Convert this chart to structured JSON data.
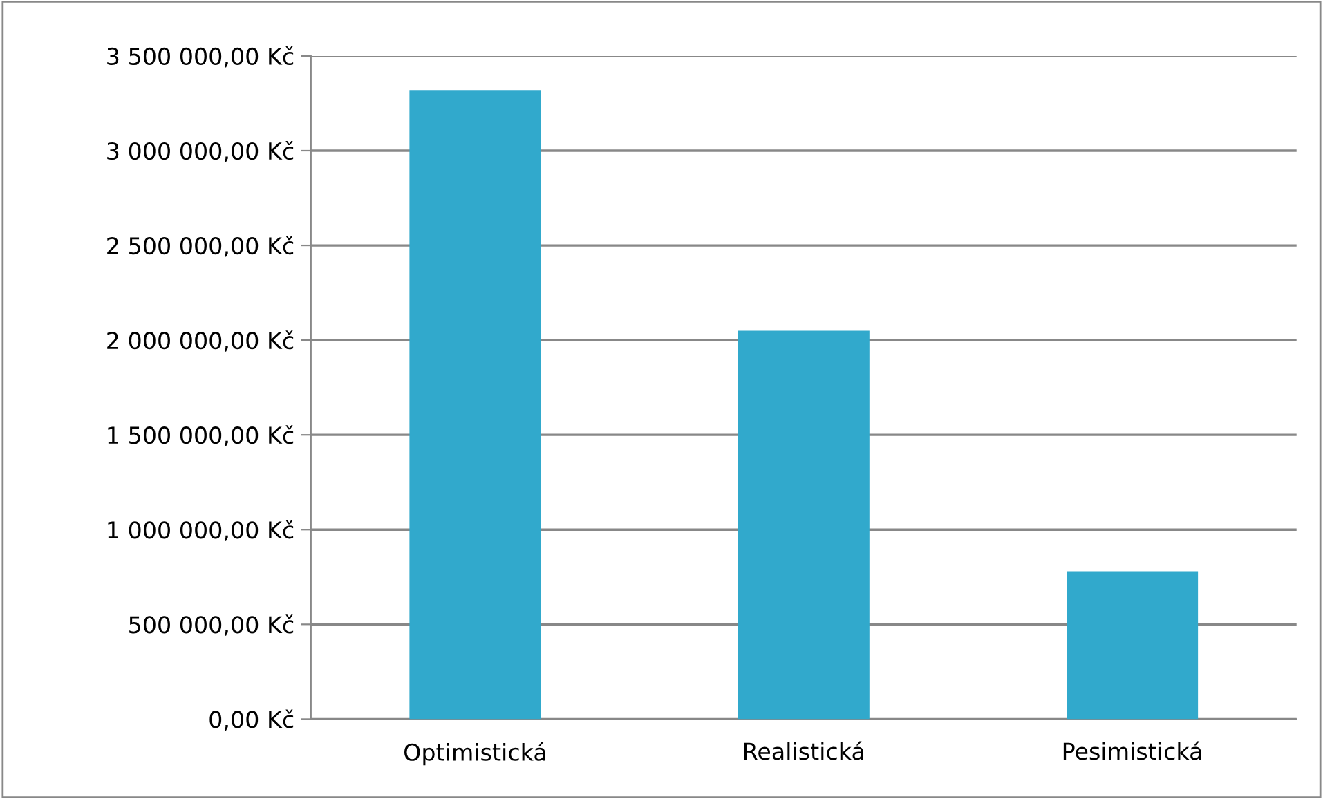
{
  "chart_data": {
    "type": "bar",
    "categories": [
      "Optimistická",
      "Realistická",
      "Pesimistická"
    ],
    "values": [
      3320000,
      2050000,
      780000
    ],
    "color": "#31a9cc",
    "ylim": [
      0,
      3500000
    ],
    "yticks": [
      {
        "value": 0,
        "label": "0,00 Kč"
      },
      {
        "value": 500000,
        "label": "500 000,00 Kč"
      },
      {
        "value": 1000000,
        "label": "1 000 000,00 Kč"
      },
      {
        "value": 1500000,
        "label": "1 500 000,00 Kč"
      },
      {
        "value": 2000000,
        "label": "2 000 000,00 Kč"
      },
      {
        "value": 2500000,
        "label": "2 500 000,00 Kč"
      },
      {
        "value": 3000000,
        "label": "3 000 000,00 Kč"
      },
      {
        "value": 3500000,
        "label": "3 500 000,00 Kč"
      }
    ],
    "grid": "y",
    "legend": false
  }
}
